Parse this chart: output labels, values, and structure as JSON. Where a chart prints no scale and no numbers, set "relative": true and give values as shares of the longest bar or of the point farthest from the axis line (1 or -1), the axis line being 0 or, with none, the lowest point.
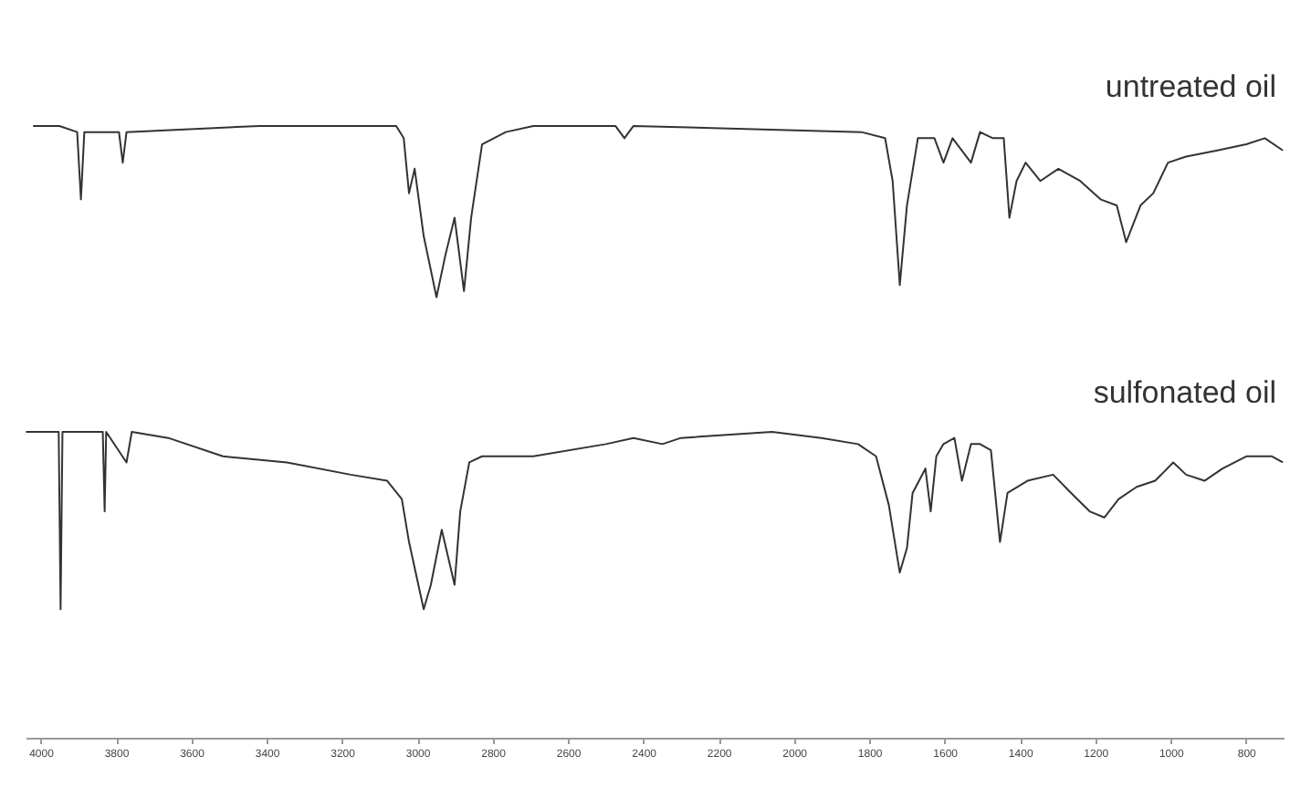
{
  "chart_data": {
    "type": "line",
    "relative": true,
    "xlim": [
      4040,
      700
    ],
    "xticks": [
      4000,
      3800,
      3600,
      3400,
      3200,
      3000,
      2800,
      2600,
      2400,
      2200,
      2000,
      1800,
      1600,
      1400,
      1200,
      1000,
      800
    ],
    "grid": false,
    "marker": "none",
    "line_style": "solid",
    "series": [
      {
        "name": "untreated oil",
        "color": "#333333",
        "x": [
          4020,
          3950,
          3903,
          3893,
          3884,
          3792,
          3782,
          3772,
          3419,
          3056,
          3036,
          3022,
          3007,
          2983,
          2949,
          2925,
          2901,
          2876,
          2857,
          2828,
          2765,
          2692,
          2474,
          2450,
          2426,
          1821,
          1758,
          1738,
          1719,
          1700,
          1671,
          1627,
          1603,
          1579,
          1530,
          1506,
          1472,
          1443,
          1428,
          1409,
          1385,
          1346,
          1298,
          1240,
          1186,
          1143,
          1118,
          1080,
          1046,
          1007,
          959,
          876,
          799,
          750,
          702
        ],
        "values": [
          1.0,
          1.0,
          0.99,
          0.88,
          0.99,
          0.99,
          0.94,
          0.99,
          1.0,
          1.0,
          0.98,
          0.89,
          0.93,
          0.82,
          0.72,
          0.79,
          0.85,
          0.73,
          0.85,
          0.97,
          0.99,
          1.0,
          1.0,
          0.98,
          1.0,
          0.99,
          0.98,
          0.91,
          0.74,
          0.87,
          0.98,
          0.98,
          0.94,
          0.98,
          0.94,
          0.99,
          0.98,
          0.98,
          0.85,
          0.91,
          0.94,
          0.91,
          0.93,
          0.91,
          0.88,
          0.87,
          0.81,
          0.87,
          0.89,
          0.94,
          0.95,
          0.96,
          0.97,
          0.98,
          0.96
        ]
      },
      {
        "name": "sulfonated oil",
        "color": "#333333",
        "x": [
          4039,
          3976,
          3952,
          3947,
          3942,
          3879,
          3835,
          3830,
          3826,
          3772,
          3758,
          3661,
          3516,
          3346,
          3177,
          3080,
          3041,
          3022,
          2983,
          2964,
          2935,
          2901,
          2886,
          2862,
          2828,
          2692,
          2499,
          2426,
          2349,
          2300,
          2058,
          1927,
          1830,
          1782,
          1748,
          1719,
          1700,
          1685,
          1651,
          1637,
          1622,
          1603,
          1574,
          1554,
          1530,
          1506,
          1477,
          1453,
          1433,
          1380,
          1312,
          1264,
          1215,
          1176,
          1138,
          1090,
          1041,
          993,
          959,
          910,
          862,
          799,
          731,
          702
        ],
        "values": [
          0.5,
          0.5,
          0.5,
          0.21,
          0.5,
          0.5,
          0.5,
          0.37,
          0.5,
          0.45,
          0.5,
          0.49,
          0.46,
          0.45,
          0.43,
          0.42,
          0.39,
          0.32,
          0.21,
          0.25,
          0.34,
          0.25,
          0.37,
          0.45,
          0.46,
          0.46,
          0.48,
          0.49,
          0.48,
          0.49,
          0.5,
          0.49,
          0.48,
          0.46,
          0.38,
          0.27,
          0.31,
          0.4,
          0.44,
          0.37,
          0.46,
          0.48,
          0.49,
          0.42,
          0.48,
          0.48,
          0.47,
          0.32,
          0.4,
          0.42,
          0.43,
          0.4,
          0.37,
          0.36,
          0.39,
          0.41,
          0.42,
          0.45,
          0.43,
          0.42,
          0.44,
          0.46,
          0.46,
          0.45
        ]
      }
    ]
  }
}
